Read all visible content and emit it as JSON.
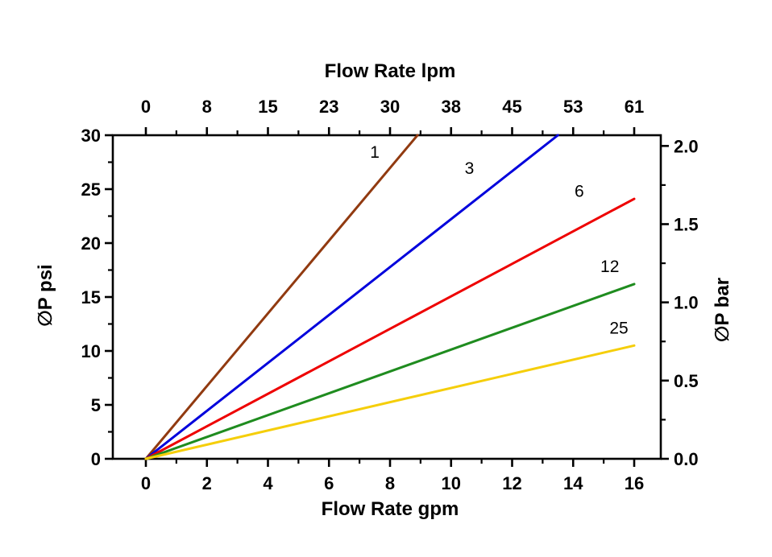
{
  "background_color": "#ffffff",
  "axis_color": "#000000",
  "chart_data": {
    "type": "line",
    "title": "",
    "x_axis_bottom": {
      "label": "Flow Rate gpm",
      "major_ticks": [
        0,
        2,
        4,
        6,
        8,
        10,
        12,
        14,
        16
      ],
      "tick_labels": [
        "0",
        "2",
        "4",
        "6",
        "8",
        "10",
        "12",
        "14",
        "16"
      ],
      "minor_ticks": [
        1,
        3,
        5,
        7,
        9,
        11,
        13,
        15
      ],
      "range": [
        0,
        16
      ]
    },
    "x_axis_top": {
      "label": "Flow Rate lpm",
      "tick_positions_gpm": [
        0,
        2,
        4,
        6,
        8,
        10,
        12,
        14,
        16
      ],
      "tick_labels": [
        "0",
        "8",
        "15",
        "23",
        "30",
        "38",
        "45",
        "53",
        "61"
      ]
    },
    "y_axis_left": {
      "label": "∅P psi",
      "major_ticks": [
        0,
        5,
        10,
        15,
        20,
        25,
        30
      ],
      "tick_labels": [
        "0",
        "5",
        "10",
        "15",
        "20",
        "25",
        "30"
      ],
      "minor_ticks": [
        2.5,
        7.5,
        12.5,
        17.5,
        22.5,
        27.5
      ],
      "range": [
        0,
        30
      ]
    },
    "y_axis_right": {
      "label": "∅P bar",
      "major_ticks": [
        0,
        0.5,
        1,
        1.5,
        2
      ],
      "tick_labels": [
        "0.0",
        "0.5",
        "1.0",
        "1.5",
        "2.0"
      ],
      "minor_ticks": [
        0.25,
        0.75,
        1.25,
        1.75
      ],
      "psi_per_bar": 14.5038,
      "range": [
        0,
        2.07
      ]
    },
    "grid": false,
    "legend": "inline-labels",
    "series": [
      {
        "name": "1",
        "color": "#913A10",
        "points": [
          [
            0,
            0
          ],
          [
            8.9,
            30
          ]
        ],
        "label_pos": [
          7.5,
          27.9
        ]
      },
      {
        "name": "3",
        "color": "#0000DC",
        "points": [
          [
            0,
            0
          ],
          [
            13.5,
            30
          ]
        ],
        "label_pos": [
          10.6,
          26.4
        ]
      },
      {
        "name": "6",
        "color": "#EE0000",
        "points": [
          [
            0,
            0
          ],
          [
            16,
            24.1
          ]
        ],
        "label_pos": [
          14.2,
          24.3
        ]
      },
      {
        "name": "12",
        "color": "#1F8C1F",
        "points": [
          [
            0,
            0
          ],
          [
            16,
            16.2
          ]
        ],
        "label_pos": [
          15.2,
          17.3
        ]
      },
      {
        "name": "25",
        "color": "#F5CE0A",
        "points": [
          [
            0,
            0
          ],
          [
            16,
            10.5
          ]
        ],
        "label_pos": [
          15.5,
          11.6
        ]
      }
    ]
  }
}
